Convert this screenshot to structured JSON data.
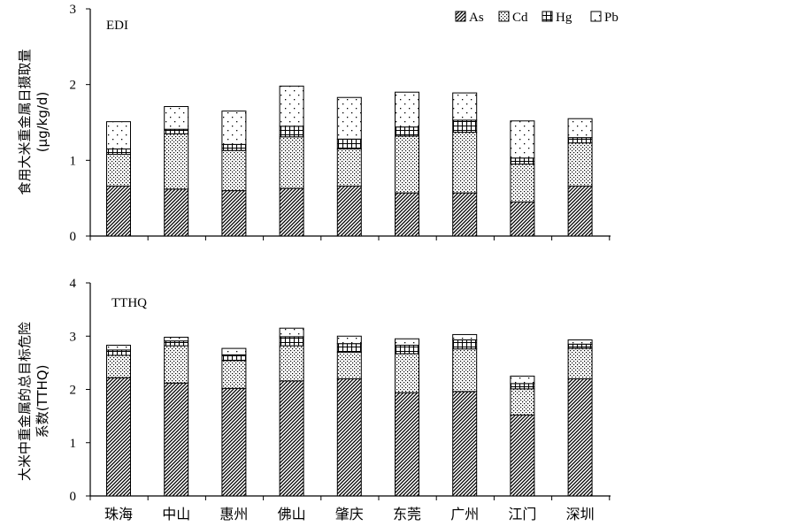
{
  "chart_data": [
    {
      "type": "bar",
      "stacked": true,
      "title": "EDI",
      "ylabel": "食用大米重金属日摄取量",
      "ylabel_unit": "(μg/kg/d)",
      "ylim": [
        0,
        3
      ],
      "yticks": [
        "0",
        "1",
        "2",
        "3"
      ],
      "categories": [
        "珠海",
        "中山",
        "惠州",
        "佛山",
        "肇庆",
        "东莞",
        "广州",
        "江门",
        "深圳"
      ],
      "series": [
        {
          "name": "As",
          "pattern": "diag",
          "values": [
            0.66,
            0.62,
            0.6,
            0.63,
            0.66,
            0.57,
            0.57,
            0.45,
            0.66
          ]
        },
        {
          "name": "Cd",
          "pattern": "dots",
          "values": [
            0.42,
            0.73,
            0.53,
            0.68,
            0.49,
            0.75,
            0.8,
            0.5,
            0.57
          ]
        },
        {
          "name": "Hg",
          "pattern": "grid",
          "values": [
            0.07,
            0.06,
            0.08,
            0.14,
            0.13,
            0.12,
            0.16,
            0.08,
            0.07
          ]
        },
        {
          "name": "Pb",
          "pattern": "sparse",
          "values": [
            0.36,
            0.3,
            0.44,
            0.53,
            0.55,
            0.46,
            0.36,
            0.49,
            0.25
          ]
        }
      ],
      "legend": {
        "position": "top-right",
        "labels": [
          "As",
          "Cd",
          "Hg",
          "Pb"
        ]
      }
    },
    {
      "type": "bar",
      "stacked": true,
      "title": "TTHQ",
      "ylabel": "大米中重金属的总目标危险",
      "ylabel_unit": "系数(TTHQ)",
      "ylim": [
        0,
        4
      ],
      "yticks": [
        "0",
        "1",
        "2",
        "3",
        "4"
      ],
      "categories": [
        "珠海",
        "中山",
        "惠州",
        "佛山",
        "肇庆",
        "东莞",
        "广州",
        "江门",
        "深圳"
      ],
      "series": [
        {
          "name": "As",
          "pattern": "diag",
          "values": [
            2.22,
            2.12,
            2.02,
            2.16,
            2.2,
            1.94,
            1.96,
            1.52,
            2.2
          ]
        },
        {
          "name": "Cd",
          "pattern": "dots",
          "values": [
            0.42,
            0.7,
            0.52,
            0.66,
            0.5,
            0.73,
            0.8,
            0.49,
            0.57
          ]
        },
        {
          "name": "Hg",
          "pattern": "grid",
          "values": [
            0.1,
            0.09,
            0.11,
            0.17,
            0.16,
            0.16,
            0.17,
            0.1,
            0.08
          ]
        },
        {
          "name": "Pb",
          "pattern": "sparse",
          "values": [
            0.09,
            0.07,
            0.12,
            0.16,
            0.14,
            0.12,
            0.1,
            0.14,
            0.08
          ]
        }
      ]
    }
  ]
}
